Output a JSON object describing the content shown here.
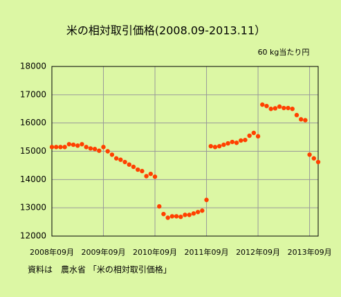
{
  "chart_data": {
    "type": "scatter",
    "title": "米の相対取引価格(2008.09-2013.11）",
    "unit_label": "60 kg当たり円",
    "source": "資料は　農水省 「米の相対取引価格」",
    "categories": [
      "2008年09月",
      null,
      null,
      null,
      null,
      null,
      null,
      null,
      null,
      null,
      null,
      null,
      "2009年09月",
      null,
      null,
      null,
      null,
      null,
      null,
      null,
      null,
      null,
      null,
      null,
      "2010年09月",
      null,
      null,
      null,
      null,
      null,
      null,
      null,
      null,
      null,
      null,
      null,
      "2011年09月",
      null,
      null,
      null,
      null,
      null,
      null,
      null,
      null,
      null,
      null,
      null,
      "2012年09月",
      null,
      null,
      null,
      null,
      null,
      null,
      null,
      null,
      null,
      null,
      null,
      "2013年09月",
      null,
      null
    ],
    "values": [
      15150,
      15150,
      15150,
      15150,
      15250,
      15230,
      15200,
      15250,
      15150,
      15100,
      15080,
      15020,
      15150,
      15000,
      14880,
      14750,
      14700,
      14620,
      14530,
      14450,
      14350,
      14300,
      14120,
      14200,
      14100,
      13050,
      12780,
      12650,
      12700,
      12700,
      12680,
      12750,
      12750,
      12800,
      12850,
      12900,
      13280,
      15180,
      15150,
      15180,
      15230,
      15280,
      15330,
      15300,
      15380,
      15400,
      15550,
      15650,
      15530,
      16650,
      16600,
      16500,
      16520,
      16580,
      16530,
      16530,
      16500,
      16280,
      16130,
      16100,
      14880,
      14750,
      14620
    ],
    "color": "#ff4000",
    "ylim": [
      12000,
      18000
    ],
    "yticks": [
      12000,
      13000,
      14000,
      15000,
      16000,
      17000,
      18000
    ],
    "grid": true
  }
}
